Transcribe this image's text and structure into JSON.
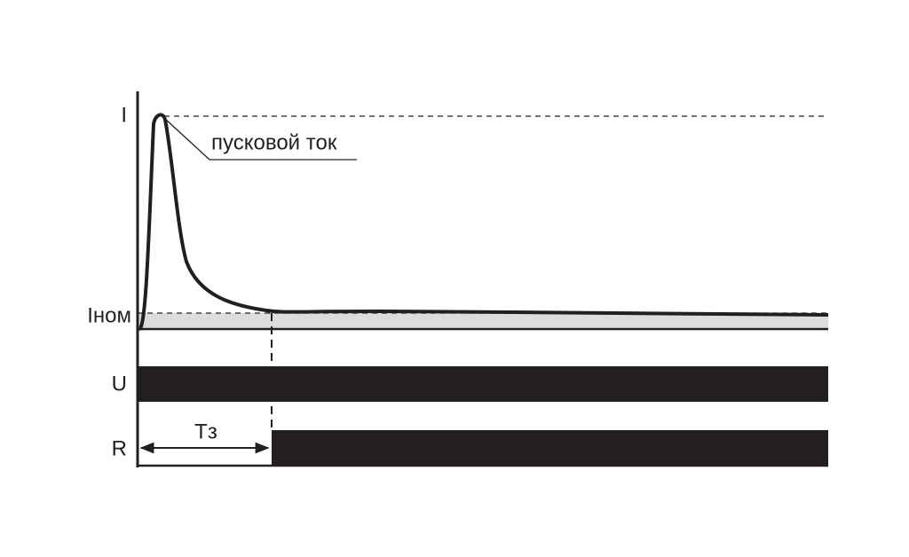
{
  "axis_labels": {
    "current": "I",
    "nominal_current": "Iном",
    "voltage": "U",
    "relay": "R"
  },
  "annotation": "пусковой ток",
  "delay_label": "Tз"
}
